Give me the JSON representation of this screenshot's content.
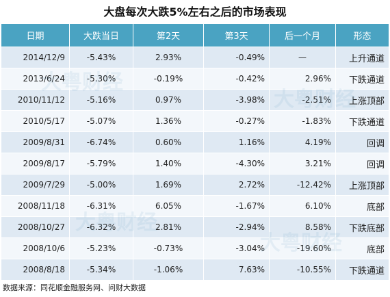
{
  "title": "大盘每次大跌5%左右之后的市场表现",
  "watermark": "大粤财经",
  "source": "数据来源：同花顺金融服务网、问财大数据",
  "chart_data": {
    "type": "table",
    "title": "大盘每次大跌5%左右之后的市场表现",
    "columns": [
      "日期",
      "大跌当日",
      "第2天",
      "第3天",
      "后一个月",
      "形态"
    ],
    "rows": [
      [
        "2014/12/9",
        "-5.43%",
        "2.93%",
        "-0.49%",
        "—",
        "上升通道"
      ],
      [
        "2013/6/24",
        "-5.30%",
        "-0.19%",
        "-0.42%",
        "2.96%",
        "下跌通道"
      ],
      [
        "2010/11/12",
        "-5.16%",
        "0.97%",
        "-3.98%",
        "-2.51%",
        "上涨顶部"
      ],
      [
        "2010/5/17",
        "-5.07%",
        "1.36%",
        "-0.27%",
        "-1.83%",
        "下跌通道"
      ],
      [
        "2009/8/31",
        "-6.74%",
        "0.60%",
        "1.16%",
        "4.19%",
        "回调"
      ],
      [
        "2009/8/17",
        "-5.79%",
        "1.40%",
        "-4.30%",
        "3.21%",
        "回调"
      ],
      [
        "2009/7/29",
        "-5.00%",
        "1.69%",
        "2.72%",
        "-12.42%",
        "上涨顶部"
      ],
      [
        "2008/11/18",
        "-6.31%",
        "6.05%",
        "-1.67%",
        "6.10%",
        "底部"
      ],
      [
        "2008/10/27",
        "-6.32%",
        "2.81%",
        "-2.94%",
        "8.58%",
        "下跌底部"
      ],
      [
        "2008/10/6",
        "-5.23%",
        "-0.73%",
        "-3.04%",
        "-19.60%",
        "底部"
      ],
      [
        "2008/8/18",
        "-5.34%",
        "-1.06%",
        "7.63%",
        "-10.55%",
        "下跌通道"
      ]
    ]
  }
}
